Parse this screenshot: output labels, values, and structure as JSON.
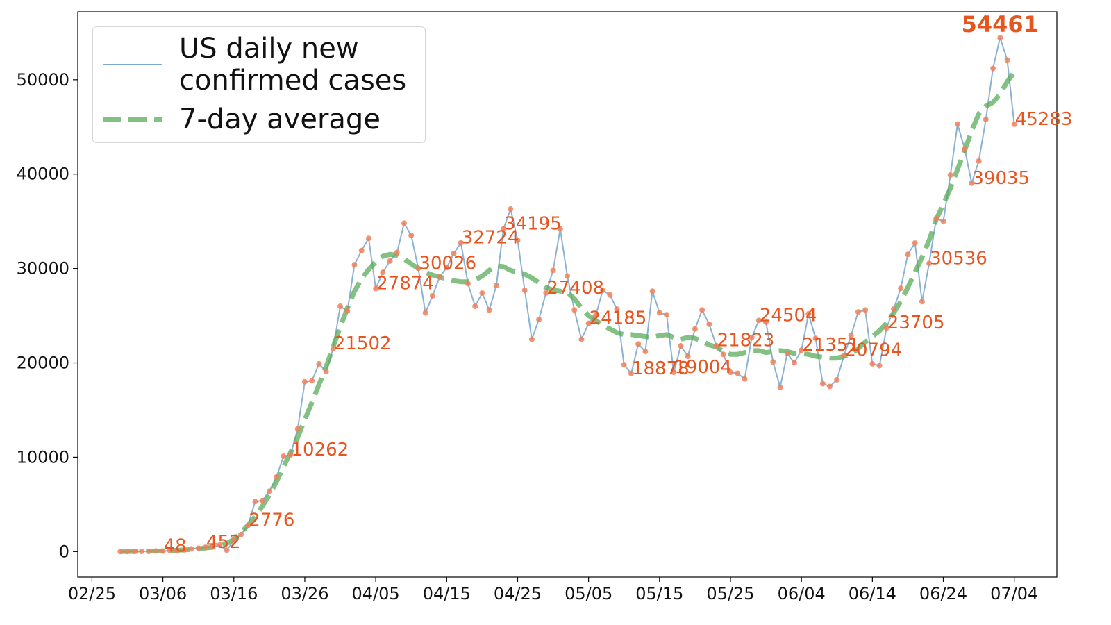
{
  "chart_data": {
    "type": "line",
    "x": [
      "02/29",
      "03/01",
      "03/02",
      "03/03",
      "03/04",
      "03/05",
      "03/06",
      "03/07",
      "03/08",
      "03/09",
      "03/10",
      "03/11",
      "03/12",
      "03/13",
      "03/14",
      "03/15",
      "03/16",
      "03/17",
      "03/18",
      "03/19",
      "03/20",
      "03/21",
      "03/22",
      "03/23",
      "03/24",
      "03/25",
      "03/26",
      "03/27",
      "03/28",
      "03/29",
      "03/30",
      "03/31",
      "04/01",
      "04/02",
      "04/03",
      "04/04",
      "04/05",
      "04/06",
      "04/07",
      "04/08",
      "04/09",
      "04/10",
      "04/11",
      "04/12",
      "04/13",
      "04/14",
      "04/15",
      "04/16",
      "04/17",
      "04/18",
      "04/19",
      "04/20",
      "04/21",
      "04/22",
      "04/23",
      "04/24",
      "04/25",
      "04/26",
      "04/27",
      "04/28",
      "04/29",
      "04/30",
      "05/01",
      "05/02",
      "05/03",
      "05/04",
      "05/05",
      "05/06",
      "05/07",
      "05/08",
      "05/09",
      "05/10",
      "05/11",
      "05/12",
      "05/13",
      "05/14",
      "05/15",
      "05/16",
      "05/17",
      "05/18",
      "05/19",
      "05/20",
      "05/21",
      "05/22",
      "05/23",
      "05/24",
      "05/25",
      "05/26",
      "05/27",
      "05/28",
      "05/29",
      "05/30",
      "05/31",
      "06/01",
      "06/02",
      "06/03",
      "06/04",
      "06/05",
      "06/06",
      "06/07",
      "06/08",
      "06/09",
      "06/10",
      "06/11",
      "06/12",
      "06/13",
      "06/14",
      "06/15",
      "06/16",
      "06/17",
      "06/18",
      "06/19",
      "06/20",
      "06/21",
      "06/22",
      "06/23",
      "06/24",
      "06/25",
      "06/26",
      "06/27",
      "06/28",
      "06/29",
      "06/30",
      "07/01",
      "07/02",
      "07/03",
      "07/04"
    ],
    "series": [
      {
        "name": "US daily new confirmed cases",
        "color": "#7eaacd",
        "marker_color": "#f0805c",
        "label_color": "#e8541e",
        "values": [
          5,
          8,
          22,
          23,
          31,
          68,
          48,
          105,
          114,
          178,
          292,
          362,
          452,
          500,
          700,
          150,
          1200,
          1800,
          2776,
          5300,
          5400,
          6400,
          7900,
          10100,
          10262,
          13000,
          18000,
          18100,
          19900,
          19100,
          21502,
          26000,
          25500,
          30400,
          31900,
          33200,
          27874,
          29600,
          30800,
          31700,
          34800,
          33500,
          30026,
          25300,
          27100,
          29100,
          30100,
          31600,
          32724,
          28400,
          26000,
          27400,
          25600,
          28200,
          34195,
          36300,
          33000,
          27700,
          22500,
          24600,
          27408,
          29800,
          34200,
          29200,
          25600,
          22500,
          24185,
          25000,
          27700,
          27200,
          25700,
          19800,
          18878,
          22000,
          21200,
          27600,
          25300,
          25100,
          19004,
          21800,
          20700,
          23600,
          25600,
          24100,
          21823,
          20900,
          19000,
          18900,
          18300,
          22700,
          24504,
          24300,
          20100,
          17400,
          21000,
          20000,
          21351,
          25200,
          22600,
          17800,
          17500,
          18200,
          20794,
          22900,
          25400,
          25600,
          19900,
          19700,
          23705,
          25700,
          27900,
          31500,
          32700,
          26500,
          30536,
          35300,
          35000,
          39900,
          45300,
          42700,
          39035,
          41400,
          45800,
          51200,
          54461,
          52100,
          45283
        ]
      },
      {
        "name": "7-day average",
        "color": "#5aab5a",
        "dashed": true,
        "values": [
          10,
          15,
          25,
          35,
          50,
          60,
          80,
          100,
          140,
          180,
          230,
          300,
          380,
          450,
          600,
          850,
          1300,
          2000,
          2800,
          3700,
          4800,
          6000,
          7400,
          9000,
          10500,
          12100,
          14000,
          15800,
          17700,
          19600,
          21700,
          23800,
          25800,
          27600,
          28900,
          29900,
          30700,
          31300,
          31500,
          31400,
          31000,
          30500,
          30000,
          29600,
          29300,
          29100,
          28900,
          28700,
          28600,
          28600,
          28800,
          29200,
          29800,
          30300,
          30200,
          29800,
          29600,
          29400,
          29000,
          28500,
          28000,
          27700,
          27600,
          27500,
          26800,
          25800,
          25000,
          24500,
          24000,
          23600,
          23200,
          23000,
          23000,
          22900,
          22800,
          22700,
          22900,
          23000,
          22700,
          22500,
          22700,
          22600,
          22300,
          21900,
          21700,
          21200,
          20900,
          20900,
          21100,
          21300,
          21300,
          21100,
          21200,
          21300,
          21200,
          21000,
          21000,
          20900,
          20700,
          20600,
          20500,
          20500,
          20700,
          20900,
          21500,
          22200,
          22800,
          23400,
          24200,
          25300,
          26500,
          28000,
          29600,
          31200,
          33000,
          35200,
          36800,
          38500,
          40500,
          42500,
          44600,
          46400,
          47200,
          47600,
          48500,
          49800,
          50800
        ]
      }
    ],
    "xlim": [
      "02/23",
      "07/10"
    ],
    "xticks": [
      "02/25",
      "03/06",
      "03/16",
      "03/26",
      "04/05",
      "04/15",
      "04/25",
      "05/05",
      "05/15",
      "05/25",
      "06/04",
      "06/14",
      "06/24",
      "07/04"
    ],
    "ylim": [
      -2700,
      57200
    ],
    "yticks": [
      0,
      10000,
      20000,
      30000,
      40000,
      50000
    ],
    "legend": "upper left"
  }
}
